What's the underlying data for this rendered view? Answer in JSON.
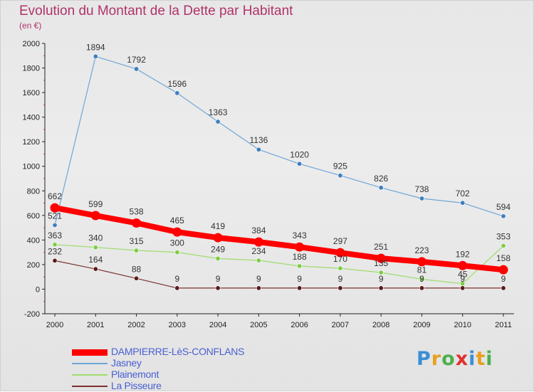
{
  "header": {
    "title": "Evolution du Montant de la Dette par Habitant",
    "unit": "(en €)"
  },
  "logo": {
    "text": "Proxiti",
    "letter_colors": [
      "#3a8fd6",
      "#e8a01e",
      "#4cb04c",
      "#e03030",
      "#3a8fd6",
      "#e8a01e",
      "#4cb04c"
    ]
  },
  "chart_data": {
    "type": "line",
    "x": [
      "2000",
      "2001",
      "2002",
      "2003",
      "2004",
      "2005",
      "2006",
      "2007",
      "2008",
      "2009",
      "2010",
      "2011"
    ],
    "ylim": [
      -200,
      2000
    ],
    "yticks": [
      "-200",
      "0",
      "200",
      "400",
      "600",
      "800",
      "1000",
      "1200",
      "1400",
      "1600",
      "1800",
      "2000"
    ],
    "grid": false,
    "legend_position": "bottom-left",
    "series": [
      {
        "name": "DAMPIERRE-LèS-CONFLANS",
        "color": "#ff0000",
        "values": [
          662,
          599,
          538,
          465,
          419,
          384,
          343,
          297,
          251,
          223,
          192,
          158
        ],
        "labels": [
          "662",
          "599",
          "538",
          "465",
          "419",
          "384",
          "343",
          "297",
          "251",
          "223",
          "192",
          "158"
        ]
      },
      {
        "name": "Jasney",
        "color": "#6fa6d6",
        "values": [
          521,
          1894,
          1792,
          1596,
          1363,
          1136,
          1020,
          925,
          826,
          738,
          702,
          594
        ],
        "labels": [
          "521",
          "1894",
          "1792",
          "1596",
          "1363",
          "1136",
          "1020",
          "925",
          "826",
          "738",
          "702",
          "594"
        ]
      },
      {
        "name": "Plainemont",
        "color": "#9edc6c",
        "values": [
          363,
          340,
          315,
          300,
          249,
          234,
          188,
          170,
          135,
          81,
          45,
          353
        ],
        "labels": [
          "363",
          "340",
          "315",
          "300",
          "249",
          "234",
          "188",
          "170",
          "135",
          "81",
          "45",
          "353"
        ]
      },
      {
        "name": "La Pisseure",
        "color": "#7a3030",
        "values": [
          232,
          164,
          88,
          9,
          9,
          9,
          9,
          9,
          9,
          9,
          9,
          9
        ],
        "labels": [
          "232",
          "164",
          "88",
          "9",
          "9",
          "9",
          "9",
          "9",
          "9",
          "9",
          "9",
          "9"
        ]
      }
    ]
  }
}
